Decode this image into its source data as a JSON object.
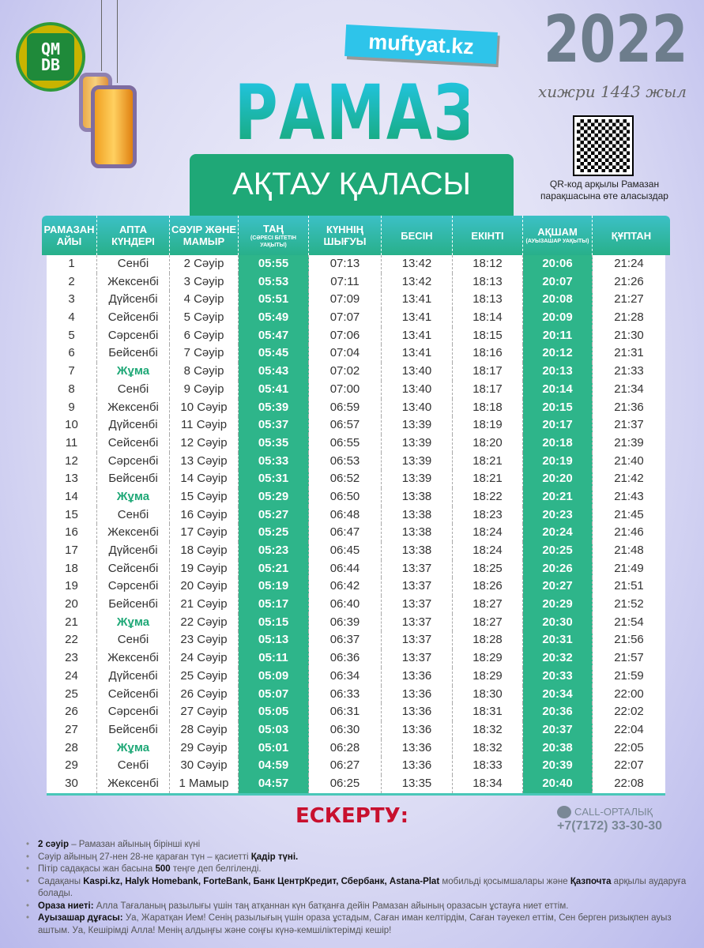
{
  "header": {
    "logo_text": "QMDB",
    "site": "muftyat.kz",
    "title": "РАМАЗАН",
    "city": "АҚТАУ ҚАЛАСЫ",
    "year": "2022",
    "hijri": "хижри 1443 жыл",
    "qr_text": "QR-код арқылы Рамазан парақшасына өте аласыздар"
  },
  "table": {
    "columns": [
      {
        "label": "РАМАЗАН АЙЫ",
        "sub": ""
      },
      {
        "label": "АПТА КҮНДЕРІ",
        "sub": ""
      },
      {
        "label": "СӘУІР ЖӘНЕ МАМЫР",
        "sub": ""
      },
      {
        "label": "ТАҢ",
        "sub": "(СӘРЕСІ БІТЕТІН УАҚЫТЫ)"
      },
      {
        "label": "КҮННІҢ ШЫҒУЫ",
        "sub": ""
      },
      {
        "label": "БЕСІН",
        "sub": ""
      },
      {
        "label": "ЕКІНТІ",
        "sub": ""
      },
      {
        "label": "АҚШАМ",
        "sub": "(АУЫЗАШАР УАҚЫТЫ)"
      },
      {
        "label": "ҚҰПТАН",
        "sub": ""
      }
    ],
    "rows": [
      [
        "1",
        "Сенбі",
        "2 Сәуір",
        "05:55",
        "07:13",
        "13:42",
        "18:12",
        "20:06",
        "21:24"
      ],
      [
        "2",
        "Жексенбі",
        "3 Сәуір",
        "05:53",
        "07:11",
        "13:42",
        "18:13",
        "20:07",
        "21:26"
      ],
      [
        "3",
        "Дүйсенбі",
        "4 Сәуір",
        "05:51",
        "07:09",
        "13:41",
        "18:13",
        "20:08",
        "21:27"
      ],
      [
        "4",
        "Сейсенбі",
        "5 Сәуір",
        "05:49",
        "07:07",
        "13:41",
        "18:14",
        "20:09",
        "21:28"
      ],
      [
        "5",
        "Сәрсенбі",
        "6 Сәуір",
        "05:47",
        "07:06",
        "13:41",
        "18:15",
        "20:11",
        "21:30"
      ],
      [
        "6",
        "Бейсенбі",
        "7 Сәуір",
        "05:45",
        "07:04",
        "13:41",
        "18:16",
        "20:12",
        "21:31"
      ],
      [
        "7",
        "Жұма",
        "8 Сәуір",
        "05:43",
        "07:02",
        "13:40",
        "18:17",
        "20:13",
        "21:33"
      ],
      [
        "8",
        "Сенбі",
        "9 Сәуір",
        "05:41",
        "07:00",
        "13:40",
        "18:17",
        "20:14",
        "21:34"
      ],
      [
        "9",
        "Жексенбі",
        "10 Сәуір",
        "05:39",
        "06:59",
        "13:40",
        "18:18",
        "20:15",
        "21:36"
      ],
      [
        "10",
        "Дүйсенбі",
        "11 Сәуір",
        "05:37",
        "06:57",
        "13:39",
        "18:19",
        "20:17",
        "21:37"
      ],
      [
        "11",
        "Сейсенбі",
        "12 Сәуір",
        "05:35",
        "06:55",
        "13:39",
        "18:20",
        "20:18",
        "21:39"
      ],
      [
        "12",
        "Сәрсенбі",
        "13 Сәуір",
        "05:33",
        "06:53",
        "13:39",
        "18:21",
        "20:19",
        "21:40"
      ],
      [
        "13",
        "Бейсенбі",
        "14 Сәуір",
        "05:31",
        "06:52",
        "13:39",
        "18:21",
        "20:20",
        "21:42"
      ],
      [
        "14",
        "Жұма",
        "15 Сәуір",
        "05:29",
        "06:50",
        "13:38",
        "18:22",
        "20:21",
        "21:43"
      ],
      [
        "15",
        "Сенбі",
        "16 Сәуір",
        "05:27",
        "06:48",
        "13:38",
        "18:23",
        "20:23",
        "21:45"
      ],
      [
        "16",
        "Жексенбі",
        "17 Сәуір",
        "05:25",
        "06:47",
        "13:38",
        "18:24",
        "20:24",
        "21:46"
      ],
      [
        "17",
        "Дүйсенбі",
        "18 Сәуір",
        "05:23",
        "06:45",
        "13:38",
        "18:24",
        "20:25",
        "21:48"
      ],
      [
        "18",
        "Сейсенбі",
        "19 Сәуір",
        "05:21",
        "06:44",
        "13:37",
        "18:25",
        "20:26",
        "21:49"
      ],
      [
        "19",
        "Сәрсенбі",
        "20 Сәуір",
        "05:19",
        "06:42",
        "13:37",
        "18:26",
        "20:27",
        "21:51"
      ],
      [
        "20",
        "Бейсенбі",
        "21 Сәуір",
        "05:17",
        "06:40",
        "13:37",
        "18:27",
        "20:29",
        "21:52"
      ],
      [
        "21",
        "Жұма",
        "22 Сәуір",
        "05:15",
        "06:39",
        "13:37",
        "18:27",
        "20:30",
        "21:54"
      ],
      [
        "22",
        "Сенбі",
        "23 Сәуір",
        "05:13",
        "06:37",
        "13:37",
        "18:28",
        "20:31",
        "21:56"
      ],
      [
        "23",
        "Жексенбі",
        "24 Сәуір",
        "05:11",
        "06:36",
        "13:37",
        "18:29",
        "20:32",
        "21:57"
      ],
      [
        "24",
        "Дүйсенбі",
        "25 Сәуір",
        "05:09",
        "06:34",
        "13:36",
        "18:29",
        "20:33",
        "21:59"
      ],
      [
        "25",
        "Сейсенбі",
        "26 Сәуір",
        "05:07",
        "06:33",
        "13:36",
        "18:30",
        "20:34",
        "22:00"
      ],
      [
        "26",
        "Сәрсенбі",
        "27 Сәуір",
        "05:05",
        "06:31",
        "13:36",
        "18:31",
        "20:36",
        "22:02"
      ],
      [
        "27",
        "Бейсенбі",
        "28 Сәуір",
        "05:03",
        "06:30",
        "13:36",
        "18:32",
        "20:37",
        "22:04"
      ],
      [
        "28",
        "Жұма",
        "29 Сәуір",
        "05:01",
        "06:28",
        "13:36",
        "18:32",
        "20:38",
        "22:05"
      ],
      [
        "29",
        "Сенбі",
        "30 Сәуір",
        "04:59",
        "06:27",
        "13:36",
        "18:33",
        "20:39",
        "22:07"
      ],
      [
        "30",
        "Жексенбі",
        "1 Мамыр",
        "04:57",
        "06:25",
        "13:35",
        "18:34",
        "20:40",
        "22:08"
      ]
    ]
  },
  "notes": {
    "title": "ЕСКЕРТУ:",
    "items": [
      [
        {
          "b": "2 сәуір"
        },
        {
          "t": " – Рамазан айының бірінші күні"
        }
      ],
      [
        {
          "t": "Сәуір айының 27-нен 28-не қараған түн – қасиетті "
        },
        {
          "b": "Қадір түні."
        }
      ],
      [
        {
          "t": "Пітір садақасы жан басына "
        },
        {
          "b": "500"
        },
        {
          "t": " теңге деп белгіленді."
        }
      ],
      [
        {
          "t": "Садақаны "
        },
        {
          "b": "Kaspi.kz, Halyk Homebank, ForteBank, Банк ЦентрКредит, Сбербанк, Astana-Plat"
        },
        {
          "t": " мобильді қосымшалары және "
        },
        {
          "b": "Қазпочта"
        },
        {
          "t": " арқылы аударуға болады."
        }
      ],
      [
        {
          "b": "Ораза ниеті:"
        },
        {
          "t": " Алла Тағаланың разылығы үшін таң атқаннан күн батқанға дейін Рамазан айының оразасын ұстауға ниет еттім."
        }
      ],
      [
        {
          "b": "Ауызашар дұғасы:"
        },
        {
          "t": " Уа, Жаратқан Ием! Сенің разылығың үшін ораза ұстадым, Саған иман келтірдім, Саған тәуекел еттім, Сен берген ризықпен ауыз аштым. Уа, Кешірімді Алла! Менің алдыңғы және соңғы күнә-кемшіліктерімді кешір!"
        }
      ]
    ]
  },
  "call": {
    "label": "CALL-ОРТАЛЫҚ",
    "phone": "+7(7172) 33-30-30"
  },
  "colors": {
    "accent": "#1fa877",
    "highlight": "#2eb58a",
    "title_gradient_top": "#22c6e8",
    "note_title": "#c8102e"
  }
}
